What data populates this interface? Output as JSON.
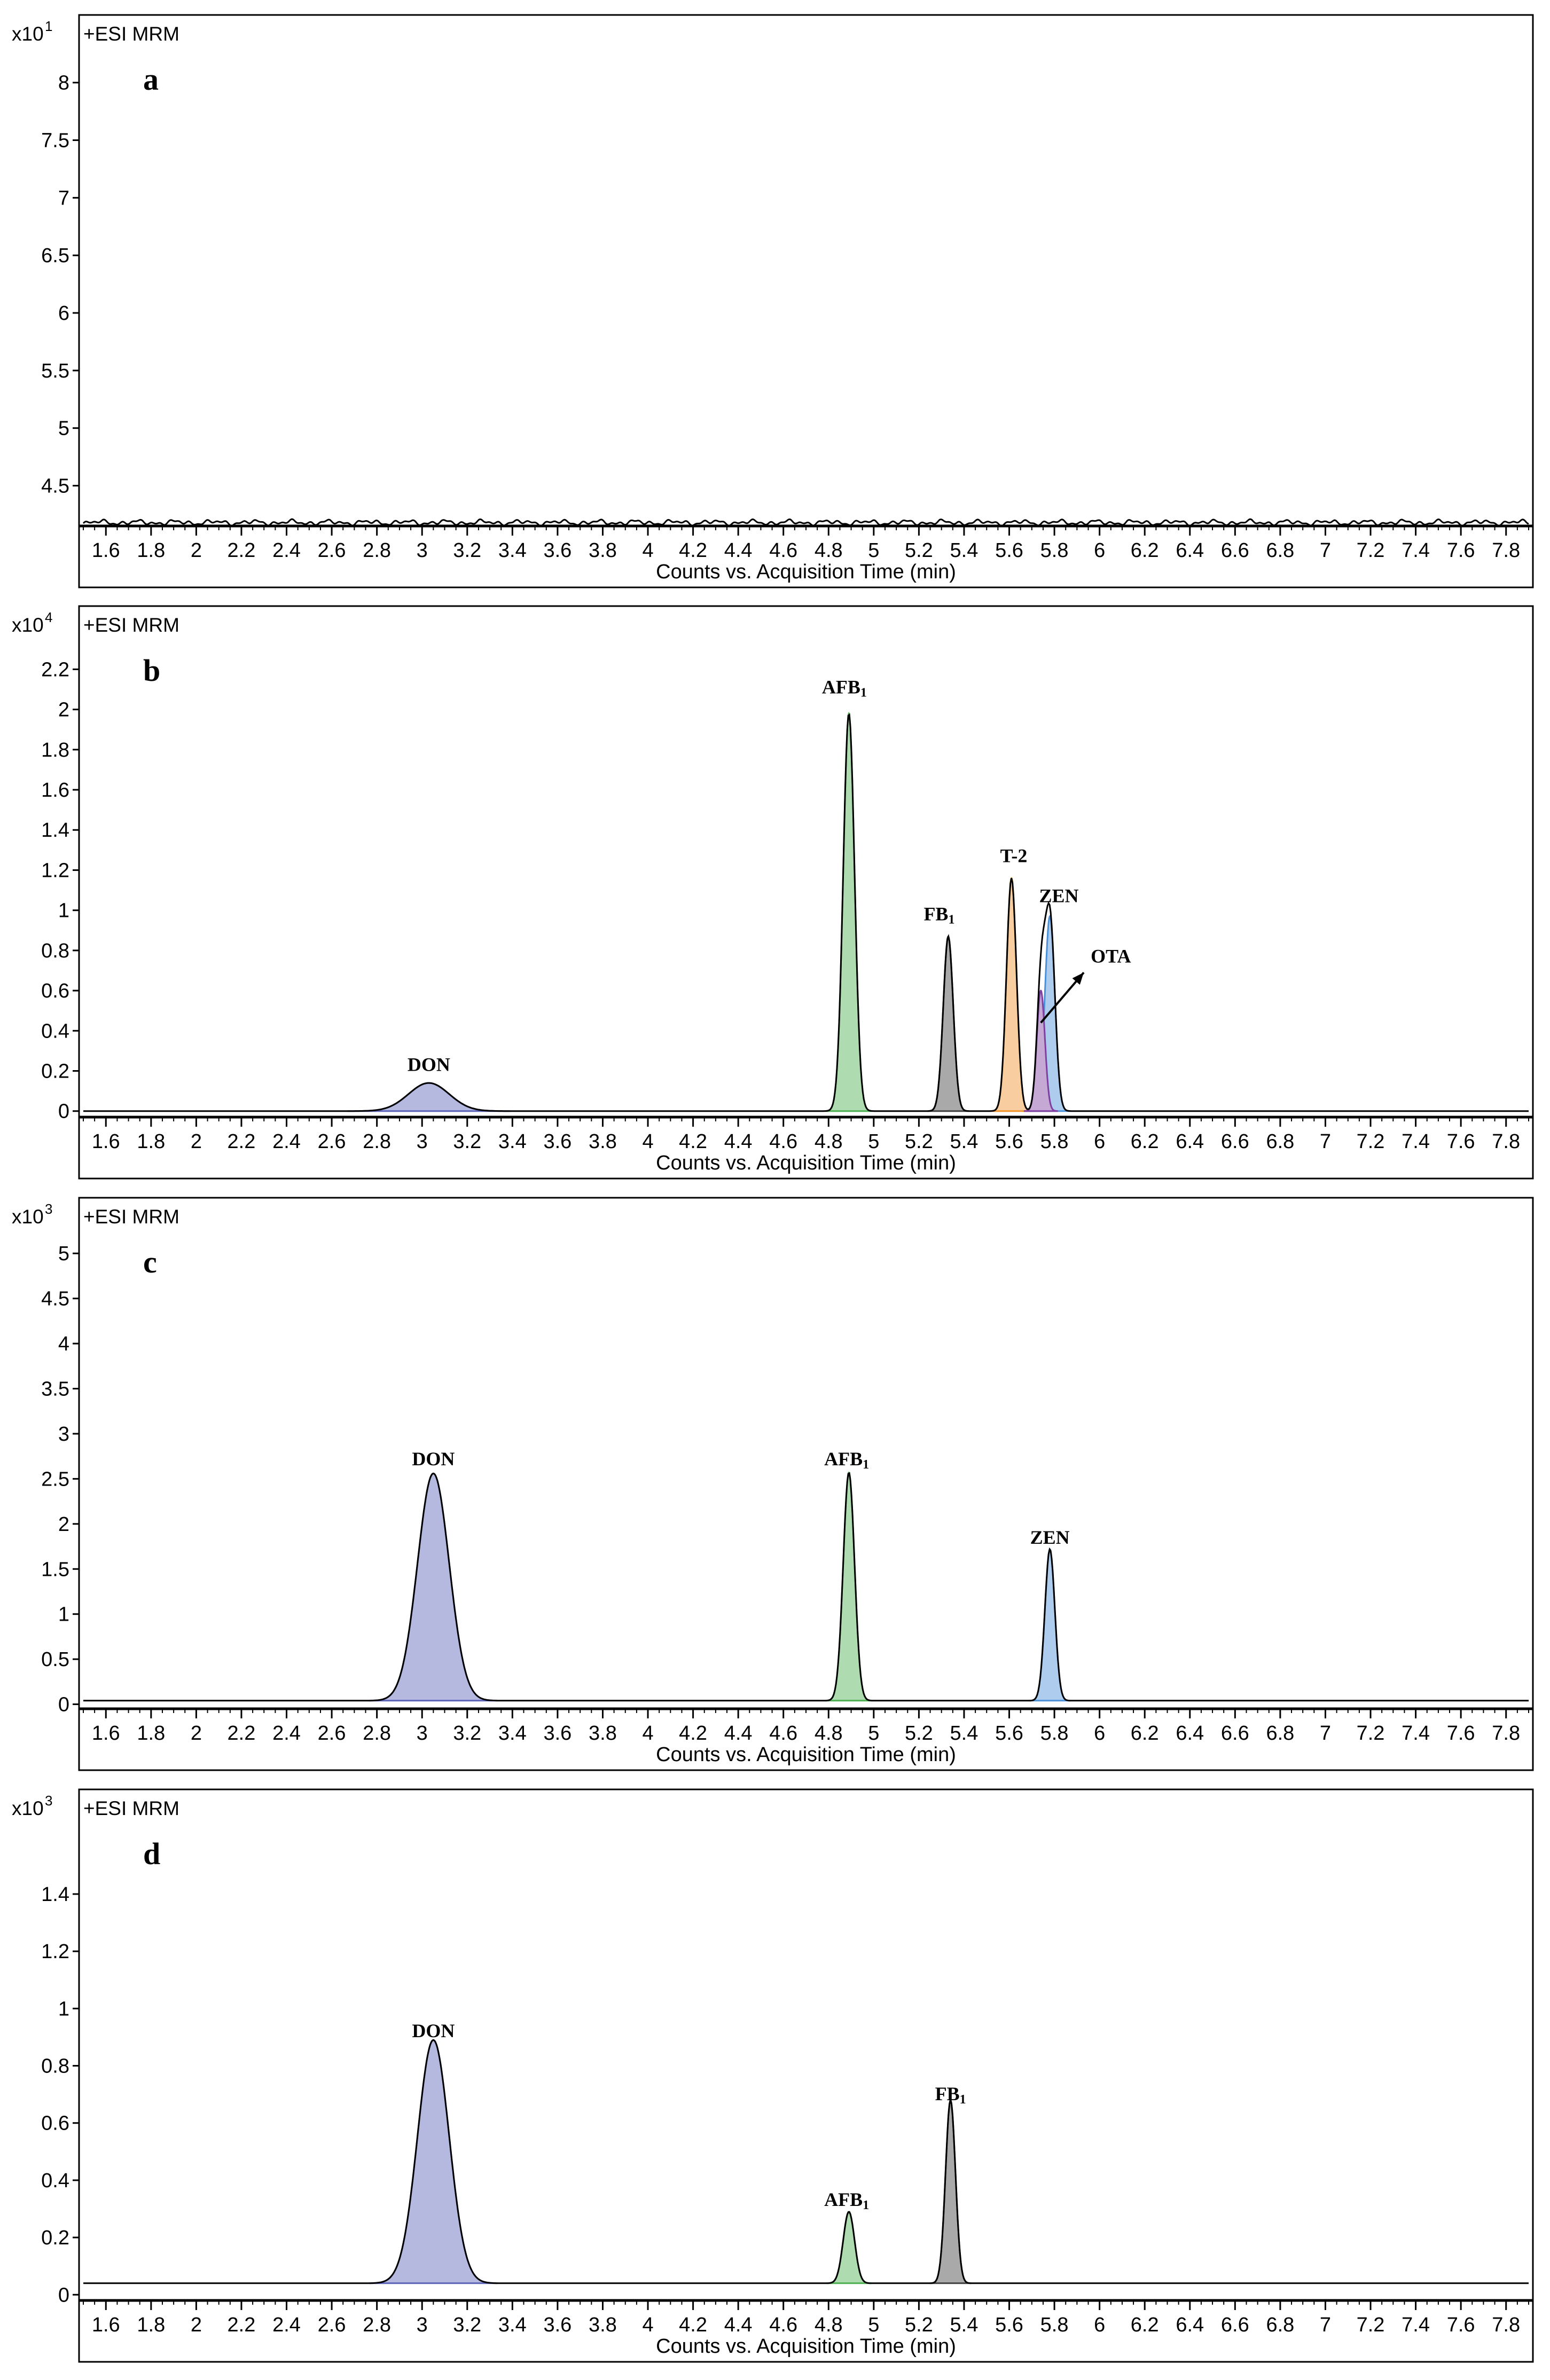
{
  "chart_data": [
    {
      "type": "line",
      "panel_label": "a",
      "header": "+ESI MRM",
      "y_multiplier_base": "x10",
      "y_multiplier_exp": "1",
      "xlabel": "Counts vs. Acquisition Time (min)",
      "xlim": [
        1.5,
        7.9
      ],
      "ylim": [
        4.15,
        8.3
      ],
      "x_ticks": [
        "1.6",
        "1.8",
        "2",
        "2.2",
        "2.4",
        "2.6",
        "2.8",
        "3",
        "3.2",
        "3.4",
        "3.6",
        "3.8",
        "4",
        "4.2",
        "4.4",
        "4.6",
        "4.8",
        "5",
        "5.2",
        "5.4",
        "5.6",
        "5.8",
        "6",
        "6.2",
        "6.4",
        "6.6",
        "6.8",
        "7",
        "7.2",
        "7.4",
        "7.6",
        "7.8"
      ],
      "y_ticks": [
        "4.5",
        "5",
        "5.5",
        "6",
        "6.5",
        "7",
        "7.5",
        "8"
      ],
      "baseline": 4.15,
      "noise_level": 4.18,
      "peaks": [],
      "annotations": []
    },
    {
      "type": "area",
      "panel_label": "b",
      "header": "+ESI MRM",
      "y_multiplier_base": "x10",
      "y_multiplier_exp": "4",
      "xlabel": "Counts vs. Acquisition Time (min)",
      "xlim": [
        1.5,
        7.9
      ],
      "ylim": [
        -0.03,
        2.35
      ],
      "x_ticks": [
        "1.6",
        "1.8",
        "2",
        "2.2",
        "2.4",
        "2.6",
        "2.8",
        "3",
        "3.2",
        "3.4",
        "3.6",
        "3.8",
        "4",
        "4.2",
        "4.4",
        "4.6",
        "4.8",
        "5",
        "5.2",
        "5.4",
        "5.6",
        "5.8",
        "6",
        "6.2",
        "6.4",
        "6.6",
        "6.8",
        "7",
        "7.2",
        "7.4",
        "7.6",
        "7.8"
      ],
      "y_ticks": [
        "0",
        "0.2",
        "0.4",
        "0.6",
        "0.8",
        "1",
        "1.2",
        "1.4",
        "1.6",
        "1.8",
        "2",
        "2.2"
      ],
      "baseline": 0,
      "peaks": [
        {
          "name": "DON",
          "sub": "",
          "x": 3.03,
          "height": 0.14,
          "width": 0.09,
          "color": "#5b63b8"
        },
        {
          "name": "AFB",
          "sub": "1",
          "x": 4.89,
          "height": 1.98,
          "width": 0.025,
          "color": "#4caf50"
        },
        {
          "name": "FB",
          "sub": "1",
          "x": 5.33,
          "height": 0.87,
          "width": 0.022,
          "color": "#404040"
        },
        {
          "name": "T-2",
          "sub": "",
          "x": 5.61,
          "height": 1.16,
          "width": 0.022,
          "color": "#f0932b"
        },
        {
          "name": "ZEN",
          "sub": "",
          "x": 5.78,
          "height": 0.97,
          "width": 0.022,
          "color": "#4a90d9"
        },
        {
          "name": "OTA",
          "sub": "",
          "x": 5.74,
          "height": 0.6,
          "width": 0.018,
          "color": "#7e3fa0"
        }
      ],
      "annotations": [
        {
          "text": "DON",
          "sub": "",
          "x": 3.03,
          "y": 0.2
        },
        {
          "text": "AFB",
          "sub": "1",
          "x": 4.87,
          "y": 2.08
        },
        {
          "text": "FB",
          "sub": "1",
          "x": 5.29,
          "y": 0.95
        },
        {
          "text": "T-2",
          "sub": "",
          "x": 5.62,
          "y": 1.24
        },
        {
          "text": "ZEN",
          "sub": "",
          "x": 5.82,
          "y": 1.04
        },
        {
          "text": "OTA",
          "sub": "",
          "x": 6.05,
          "y": 0.74,
          "arrow_from": [
            5.74,
            0.44
          ],
          "arrow_to": [
            5.93,
            0.69
          ]
        }
      ]
    },
    {
      "type": "area",
      "panel_label": "c",
      "header": "+ESI MRM",
      "y_multiplier_base": "x10",
      "y_multiplier_exp": "3",
      "xlabel": "Counts vs. Acquisition Time (min)",
      "xlim": [
        1.5,
        7.9
      ],
      "ylim": [
        -0.05,
        5.25
      ],
      "x_ticks": [
        "1.6",
        "1.8",
        "2",
        "2.2",
        "2.4",
        "2.6",
        "2.8",
        "3",
        "3.2",
        "3.4",
        "3.6",
        "3.8",
        "4",
        "4.2",
        "4.4",
        "4.6",
        "4.8",
        "5",
        "5.2",
        "5.4",
        "5.6",
        "5.8",
        "6",
        "6.2",
        "6.4",
        "6.6",
        "6.8",
        "7",
        "7.2",
        "7.4",
        "7.6",
        "7.8"
      ],
      "y_ticks": [
        "0",
        "0.5",
        "1",
        "1.5",
        "2",
        "2.5",
        "3",
        "3.5",
        "4",
        "4.5",
        "5"
      ],
      "baseline": 0.04,
      "peaks": [
        {
          "name": "DON",
          "sub": "",
          "x": 3.05,
          "height": 2.52,
          "width": 0.07,
          "color": "#5b63b8"
        },
        {
          "name": "AFB",
          "sub": "1",
          "x": 4.89,
          "height": 2.53,
          "width": 0.025,
          "color": "#4caf50"
        },
        {
          "name": "ZEN",
          "sub": "",
          "x": 5.78,
          "height": 1.68,
          "width": 0.022,
          "color": "#4a90d9"
        }
      ],
      "annotations": [
        {
          "text": "DON",
          "sub": "",
          "x": 3.05,
          "y": 2.65
        },
        {
          "text": "AFB",
          "sub": "1",
          "x": 4.88,
          "y": 2.65
        },
        {
          "text": "ZEN",
          "sub": "",
          "x": 5.78,
          "y": 1.78
        }
      ]
    },
    {
      "type": "area",
      "panel_label": "d",
      "header": "+ESI MRM",
      "y_multiplier_base": "x10",
      "y_multiplier_exp": "3",
      "xlabel": "Counts vs. Acquisition Time (min)",
      "xlim": [
        1.5,
        7.9
      ],
      "ylim": [
        -0.02,
        1.65
      ],
      "x_ticks": [
        "1.6",
        "1.8",
        "2",
        "2.2",
        "2.4",
        "2.6",
        "2.8",
        "3",
        "3.2",
        "3.4",
        "3.6",
        "3.8",
        "4",
        "4.2",
        "4.4",
        "4.6",
        "4.8",
        "5",
        "5.2",
        "5.4",
        "5.6",
        "5.8",
        "6",
        "6.2",
        "6.4",
        "6.6",
        "6.8",
        "7",
        "7.2",
        "7.4",
        "7.6",
        "7.8"
      ],
      "y_ticks": [
        "0",
        "0.2",
        "0.4",
        "0.6",
        "0.8",
        "1",
        "1.2",
        "1.4"
      ],
      "baseline": 0.04,
      "peaks": [
        {
          "name": "DON",
          "sub": "",
          "x": 3.05,
          "height": 0.85,
          "width": 0.07,
          "color": "#5b63b8"
        },
        {
          "name": "AFB",
          "sub": "1",
          "x": 4.89,
          "height": 0.25,
          "width": 0.025,
          "color": "#4caf50"
        },
        {
          "name": "FB",
          "sub": "1",
          "x": 5.34,
          "height": 0.64,
          "width": 0.022,
          "color": "#404040"
        }
      ],
      "annotations": [
        {
          "text": "DON",
          "sub": "",
          "x": 3.05,
          "y": 0.9
        },
        {
          "text": "AFB",
          "sub": "1",
          "x": 4.88,
          "y": 0.31
        },
        {
          "text": "FB",
          "sub": "1",
          "x": 5.34,
          "y": 0.68
        }
      ]
    }
  ]
}
